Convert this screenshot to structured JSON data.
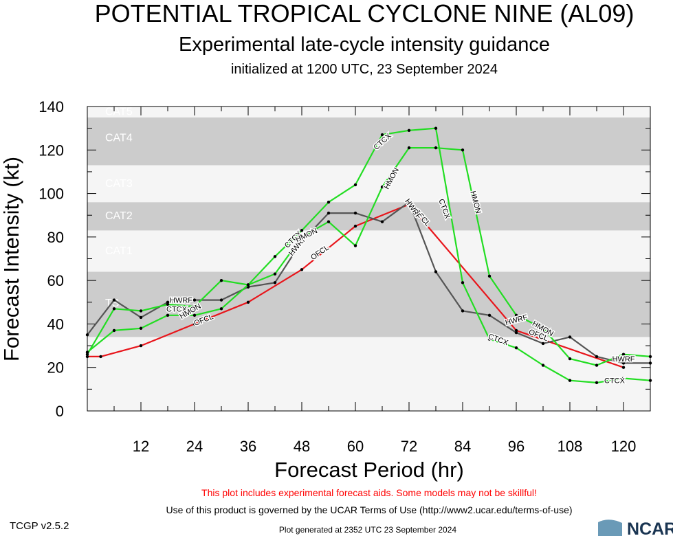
{
  "titles": {
    "main": "POTENTIAL TROPICAL CYCLONE NINE (AL09)",
    "sub": "Experimental late-cycle intensity guidance",
    "init": "initialized at 1200 UTC, 23 September 2024"
  },
  "footer": {
    "warning": "This plot includes experimental forecast aids. Some models may not be skillful!",
    "terms": "Use of this product is governed by the UCAR Terms of Use (http://www2.ucar.edu/terms-of-use)",
    "version": "TCGP v2.5.2",
    "generated": "Plot generated at 2352 UTC   23 September 2024",
    "logo": "NCAR"
  },
  "colors": {
    "band_dark": "#cccccc",
    "band_light": "#f5f5f5",
    "ofcl": "#e8151b",
    "green": "#22dd22",
    "gray": "#555555",
    "warning": "#ff0000"
  },
  "chart_data": {
    "type": "line",
    "title": "POTENTIAL TROPICAL CYCLONE NINE (AL09)",
    "xlabel": "Forecast Period (hr)",
    "ylabel": "Forecast Intensity (kt)",
    "xlim": [
      0,
      126
    ],
    "ylim": [
      0,
      140
    ],
    "xticks": [
      12,
      24,
      36,
      48,
      60,
      72,
      84,
      96,
      108,
      120
    ],
    "yticks": [
      0,
      20,
      40,
      60,
      80,
      100,
      120,
      140
    ],
    "categories": [
      {
        "name": "TS",
        "min": 34,
        "max": 64,
        "shade": "dark",
        "label_y": 50
      },
      {
        "name": "CAT1",
        "min": 64,
        "max": 83,
        "shade": "light",
        "label_y": 74
      },
      {
        "name": "CAT2",
        "min": 83,
        "max": 96,
        "shade": "dark",
        "label_y": 90
      },
      {
        "name": "CAT3",
        "min": 96,
        "max": 113,
        "shade": "light",
        "label_y": 105
      },
      {
        "name": "CAT4",
        "min": 113,
        "max": 135,
        "shade": "dark",
        "label_y": 126
      },
      {
        "name": "CAT5",
        "min": 135,
        "max": 140,
        "shade": "light",
        "label_y": 138
      }
    ],
    "series": [
      {
        "name": "OFCL",
        "color": "#e8151b",
        "x": [
          0,
          3,
          12,
          24,
          36,
          48,
          60,
          72,
          96,
          120
        ],
        "y": [
          25,
          25,
          30,
          40,
          50,
          65,
          85,
          95,
          37,
          20
        ],
        "labels": [
          {
            "x": 26,
            "y": 42,
            "angle": -22
          },
          {
            "x": 52,
            "y": 73,
            "angle": -35
          },
          {
            "x": 75,
            "y": 89,
            "angle": 48
          },
          {
            "x": 101,
            "y": 35,
            "angle": 22
          }
        ]
      },
      {
        "name": "HWRF",
        "color": "#555555",
        "x": [
          0,
          6,
          12,
          18,
          24,
          30,
          36,
          42,
          48,
          54,
          60,
          66,
          72,
          78,
          84,
          90,
          96,
          102,
          108,
          114,
          120,
          126
        ],
        "y": [
          35,
          51,
          43,
          50,
          51,
          51,
          57,
          59,
          78,
          91,
          91,
          87,
          96,
          64,
          46,
          44,
          36,
          31,
          34,
          25,
          22,
          22
        ],
        "labels": [
          {
            "x": 21,
            "y": 51,
            "angle": 0
          },
          {
            "x": 47,
            "y": 76,
            "angle": -50
          },
          {
            "x": 73,
            "y": 93,
            "angle": 55
          },
          {
            "x": 96,
            "y": 42,
            "angle": -15
          },
          {
            "x": 120,
            "y": 24,
            "angle": 0
          }
        ]
      },
      {
        "name": "CTCX",
        "color": "#22dd22",
        "x": [
          0,
          6,
          12,
          18,
          24,
          30,
          36,
          42,
          48,
          54,
          60,
          66,
          72,
          78,
          84,
          90,
          96,
          102,
          108,
          114,
          120,
          126
        ],
        "y": [
          26,
          47,
          46,
          49,
          48,
          60,
          58,
          71,
          83,
          96,
          104,
          127,
          129,
          130,
          59,
          33,
          29,
          21,
          14,
          13,
          15,
          14
        ],
        "labels": [
          {
            "x": 20,
            "y": 47,
            "angle": 0
          },
          {
            "x": 46,
            "y": 79,
            "angle": -45
          },
          {
            "x": 66,
            "y": 124,
            "angle": -42
          },
          {
            "x": 80,
            "y": 93,
            "angle": 70
          },
          {
            "x": 92,
            "y": 33,
            "angle": 20
          },
          {
            "x": 118,
            "y": 14,
            "angle": 0
          }
        ]
      },
      {
        "name": "HMON",
        "color": "#22dd22",
        "x": [
          0,
          6,
          12,
          18,
          24,
          30,
          36,
          42,
          48,
          54,
          60,
          66,
          72,
          78,
          84,
          90,
          96,
          102,
          108,
          114,
          120,
          126
        ],
        "y": [
          27,
          37,
          38,
          44,
          44,
          47,
          58,
          63,
          80,
          87,
          76,
          103,
          121,
          121,
          120,
          62,
          44,
          38,
          24,
          21,
          26,
          25
        ],
        "labels": [
          {
            "x": 23,
            "y": 46,
            "angle": -30
          },
          {
            "x": 49,
            "y": 81,
            "angle": -25
          },
          {
            "x": 68,
            "y": 107,
            "angle": -62
          },
          {
            "x": 87,
            "y": 96,
            "angle": 75
          },
          {
            "x": 102,
            "y": 38,
            "angle": 30
          }
        ]
      }
    ]
  }
}
